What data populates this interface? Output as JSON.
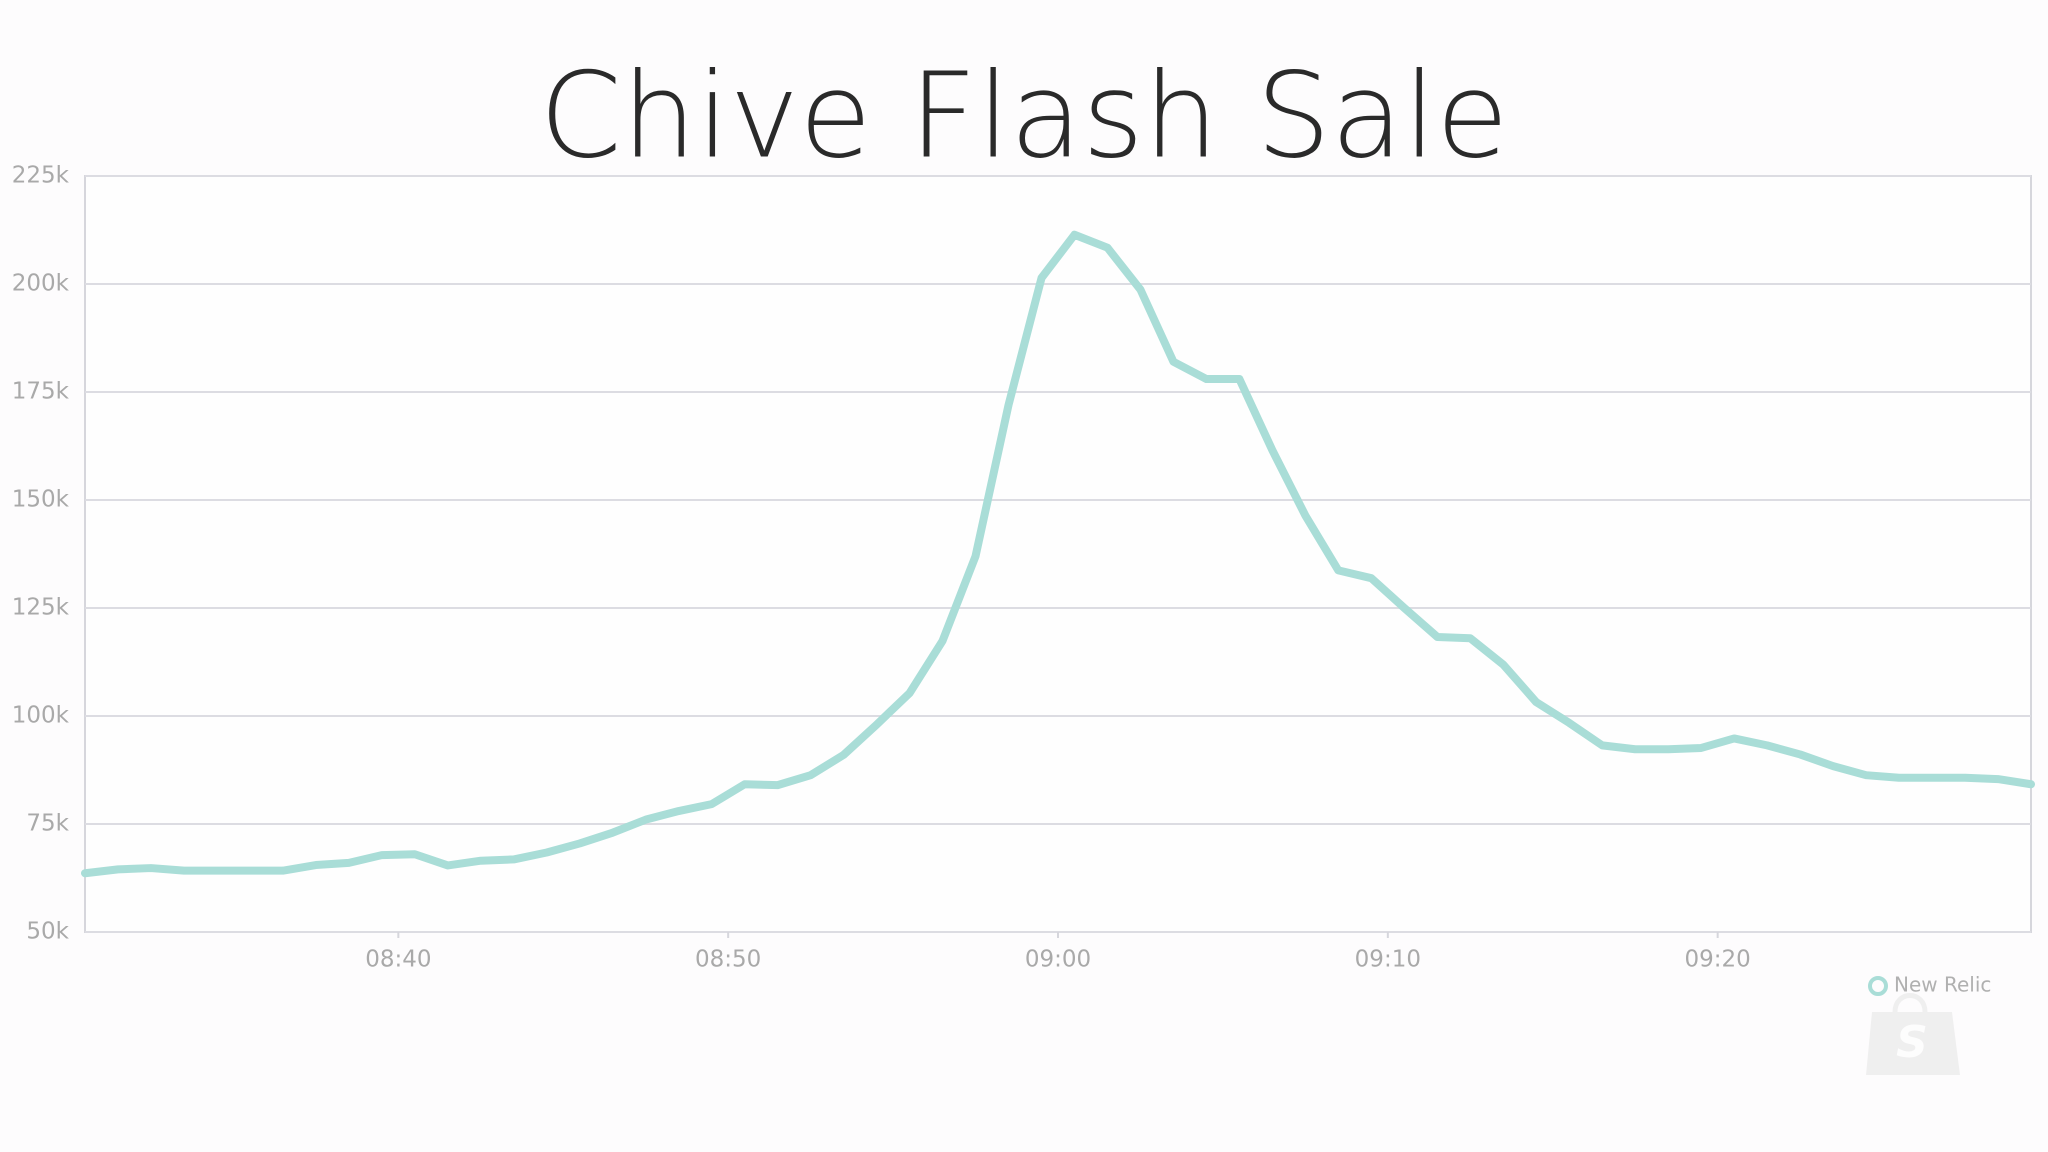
{
  "chart_data": {
    "type": "line",
    "title": "Chive Flash Sale",
    "x": [
      30.5,
      31.5,
      32.5,
      33.5,
      34.5,
      35.5,
      36.5,
      37.5,
      38.5,
      39.5,
      40.5,
      41.5,
      42.5,
      43.5,
      44.5,
      45.5,
      46.5,
      47.5,
      48.5,
      49.5,
      50.5,
      51.5,
      52.5,
      53.5,
      54.5,
      55.5,
      56.5,
      57.5,
      58.5,
      59.5,
      60.5,
      61.5,
      62.5,
      63.5,
      64.5,
      65.5,
      66.5,
      67.5,
      68.5,
      69.5,
      70.5,
      71.5,
      72.5,
      73.5,
      74.5,
      75.5,
      76.5,
      77.5,
      78.5,
      79.5,
      80.5,
      81.5,
      82.5,
      83.5,
      84.5,
      85.5,
      86.5,
      87.5,
      88.5,
      89.5
    ],
    "series": [
      {
        "name": "New Relic",
        "color": "#a9ddd7",
        "values": [
          63600,
          64500,
          64800,
          64200,
          64200,
          64200,
          64200,
          65500,
          66000,
          67800,
          68000,
          65400,
          66500,
          66800,
          68400,
          70500,
          73000,
          76000,
          78000,
          79600,
          84200,
          84000,
          86300,
          91000,
          98000,
          105300,
          117400,
          137000,
          172000,
          201400,
          211400,
          208400,
          198700,
          182000,
          178000,
          178000,
          161500,
          146400,
          133700,
          131900,
          125000,
          118300,
          118000,
          111900,
          103200,
          98400,
          93200,
          92300,
          92300,
          92600,
          94800,
          93200,
          91100,
          88400,
          86300,
          85700,
          85700,
          85700,
          85400,
          84200
        ]
      }
    ],
    "xlim": [
      30.5,
      89.5
    ],
    "xticks": [
      {
        "value": 40,
        "label": "08:40"
      },
      {
        "value": 50,
        "label": "08:50"
      },
      {
        "value": 60,
        "label": "09:00"
      },
      {
        "value": 70,
        "label": "09:10"
      },
      {
        "value": 80,
        "label": "09:20"
      }
    ],
    "ylim": [
      50000,
      225000
    ],
    "yticks": [
      {
        "value": 50000,
        "label": "50k"
      },
      {
        "value": 75000,
        "label": "75k"
      },
      {
        "value": 100000,
        "label": "100k"
      },
      {
        "value": 125000,
        "label": "125k"
      },
      {
        "value": 150000,
        "label": "150k"
      },
      {
        "value": 175000,
        "label": "175k"
      },
      {
        "value": 200000,
        "label": "200k"
      },
      {
        "value": 225000,
        "label": "225k"
      }
    ],
    "grid": true,
    "legend": "bottom-right"
  }
}
